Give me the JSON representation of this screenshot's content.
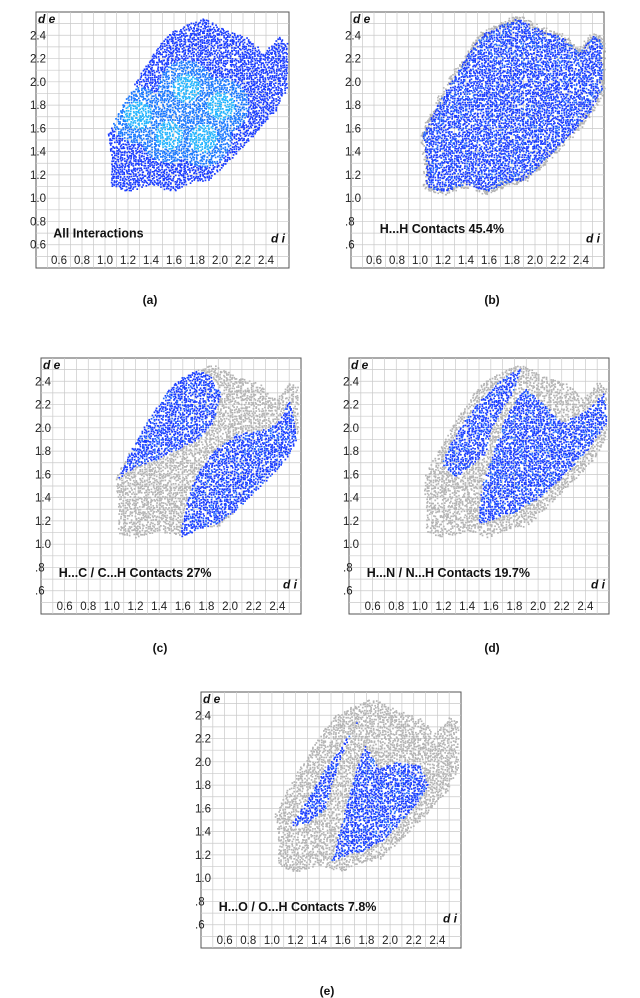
{
  "chart_data": [
    {
      "type": "heatmap",
      "panel": "(a)",
      "title": "All Interactions",
      "xlabel": "d i",
      "ylabel": "d e",
      "xlim": [
        0.4,
        2.6
      ],
      "ylim": [
        0.4,
        2.6
      ],
      "x_ticks": [
        "0.6",
        "0.8",
        "1.0",
        "1.2",
        "1.4",
        "1.6",
        "1.8",
        "2.0",
        "2.2",
        "2.4"
      ],
      "y_ticks": [
        "2.4",
        "2.2",
        "2.0",
        "1.8",
        "1.6",
        "1.4",
        "1.2",
        "1.0",
        "0.8",
        "0.6"
      ],
      "grid": true,
      "contact": "all",
      "highlight_color": "#1a3cff",
      "background_color": "#b4b4b4"
    },
    {
      "type": "heatmap",
      "panel": "(b)",
      "title": "H...H Contacts 45.4%",
      "contact_percent": 45.4,
      "xlabel": "d i",
      "ylabel": "d e",
      "xlim": [
        0.4,
        2.6
      ],
      "ylim": [
        0.4,
        2.6
      ],
      "x_ticks": [
        "0.6",
        "0.8",
        "1.0",
        "1.2",
        "1.4",
        "1.6",
        "1.8",
        "2.0",
        "2.2",
        "2.4"
      ],
      "y_ticks": [
        "2.4",
        "2.2",
        "2.0",
        "1.8",
        "1.6",
        "1.4",
        "1.2",
        "1.0",
        ".8",
        ".6"
      ],
      "grid": true,
      "contact": "HH",
      "highlight_color": "#1a3cff",
      "background_color": "#b4b4b4"
    },
    {
      "type": "heatmap",
      "panel": "(c)",
      "title": "H...C / C...H Contacts 27%",
      "contact_percent": 27,
      "xlabel": "d i",
      "ylabel": "d e",
      "xlim": [
        0.4,
        2.6
      ],
      "ylim": [
        0.4,
        2.6
      ],
      "x_ticks": [
        "0.6",
        "0.8",
        "1.0",
        "1.2",
        "1.4",
        "1.6",
        "1.8",
        "2.0",
        "2.2",
        "2.4"
      ],
      "y_ticks": [
        "2.4",
        "2.2",
        "2.0",
        "1.8",
        "1.6",
        "1.4",
        "1.2",
        "1.0",
        ".8",
        ".6"
      ],
      "grid": true,
      "contact": "HC",
      "highlight_color": "#1a3cff",
      "background_color": "#b4b4b4"
    },
    {
      "type": "heatmap",
      "panel": "(d)",
      "title": "H...N / N...H Contacts 19.7%",
      "contact_percent": 19.7,
      "xlabel": "d i",
      "ylabel": "d e",
      "xlim": [
        0.4,
        2.6
      ],
      "ylim": [
        0.4,
        2.6
      ],
      "x_ticks": [
        "0.6",
        "0.8",
        "1.0",
        "1.2",
        "1.4",
        "1.6",
        "1.8",
        "2.0",
        "2.2",
        "2.4"
      ],
      "y_ticks": [
        "2.4",
        "2.2",
        "2.0",
        "1.8",
        "1.6",
        "1.4",
        "1.2",
        "1.0",
        ".8",
        ".6"
      ],
      "grid": true,
      "contact": "HN",
      "highlight_color": "#1a3cff",
      "background_color": "#b4b4b4"
    },
    {
      "type": "heatmap",
      "panel": "(e)",
      "title": "H...O / O...H Contacts 7.8%",
      "contact_percent": 7.8,
      "xlabel": "d i",
      "ylabel": "d e",
      "xlim": [
        0.4,
        2.6
      ],
      "ylim": [
        0.4,
        2.6
      ],
      "x_ticks": [
        "0.6",
        "0.8",
        "1.0",
        "1.2",
        "1.4",
        "1.6",
        "1.8",
        "2.0",
        "2.2",
        "2.4"
      ],
      "y_ticks": [
        "2.4",
        "2.2",
        "2.0",
        "1.8",
        "1.6",
        "1.4",
        "1.2",
        "1.0",
        ".8",
        ".6"
      ],
      "grid": true,
      "contact": "HO",
      "highlight_color": "#1a3cff",
      "background_color": "#b4b4b4"
    }
  ]
}
